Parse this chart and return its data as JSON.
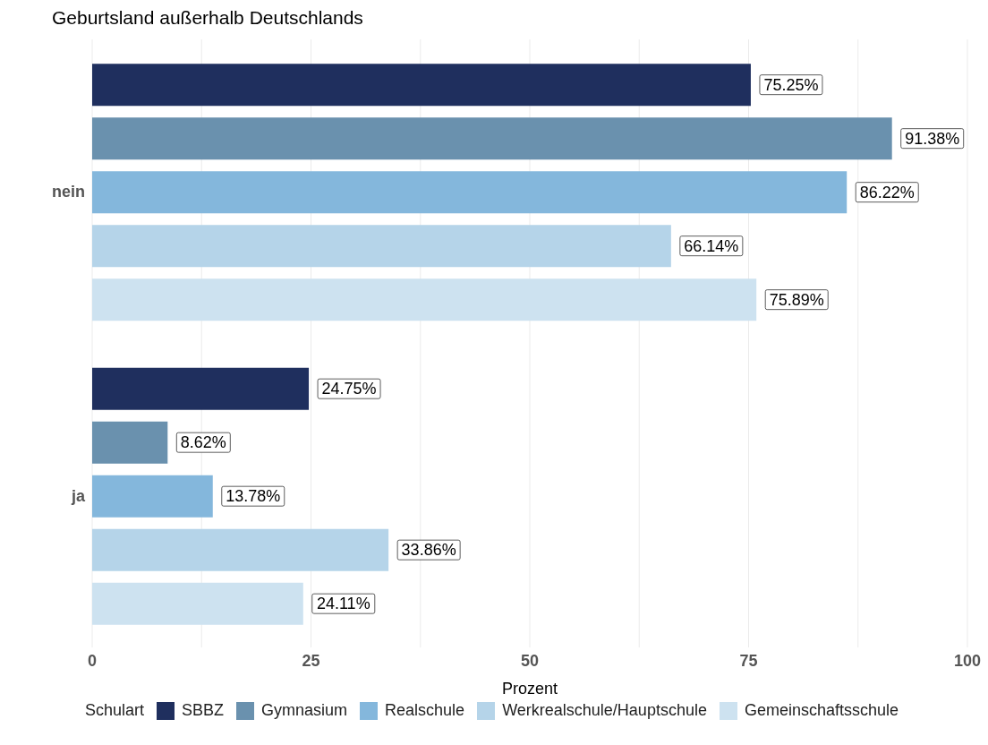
{
  "chart_data": {
    "type": "bar",
    "orientation": "horizontal",
    "title": "Geburtsland außerhalb Deutschlands",
    "xlabel": "Prozent",
    "legend_title": "Schulart",
    "categories": [
      "nein",
      "ja"
    ],
    "series": [
      {
        "name": "SBBZ",
        "color": "#1f2f5e",
        "values": [
          75.25,
          24.75
        ],
        "value_labels": [
          "75.25%",
          "24.75%"
        ]
      },
      {
        "name": "Gymnasium",
        "color": "#6a91ae",
        "values": [
          91.38,
          8.62
        ],
        "value_labels": [
          "91.38%",
          "8.62%"
        ]
      },
      {
        "name": "Realschule",
        "color": "#84b7dc",
        "values": [
          86.22,
          13.78
        ],
        "value_labels": [
          "86.22%",
          "13.78%"
        ]
      },
      {
        "name": "Werkrealschule/Hauptschule",
        "color": "#b5d4e9",
        "values": [
          66.14,
          33.86
        ],
        "value_labels": [
          "66.14%",
          "33.86%"
        ]
      },
      {
        "name": "Gemeinschaftsschule",
        "color": "#cde2f0",
        "values": [
          75.89,
          24.11
        ],
        "value_labels": [
          "75.89%",
          "24.11%"
        ]
      }
    ],
    "xlim": [
      0,
      100
    ],
    "xticks": [
      0,
      {
        "value": 12.5,
        "label": null
      },
      25,
      {
        "value": 37.5,
        "label": null
      },
      50,
      {
        "value": 62.5,
        "label": null
      },
      75,
      {
        "value": 87.5,
        "label": null
      },
      100
    ],
    "grid": "x",
    "legend": "bottom"
  }
}
